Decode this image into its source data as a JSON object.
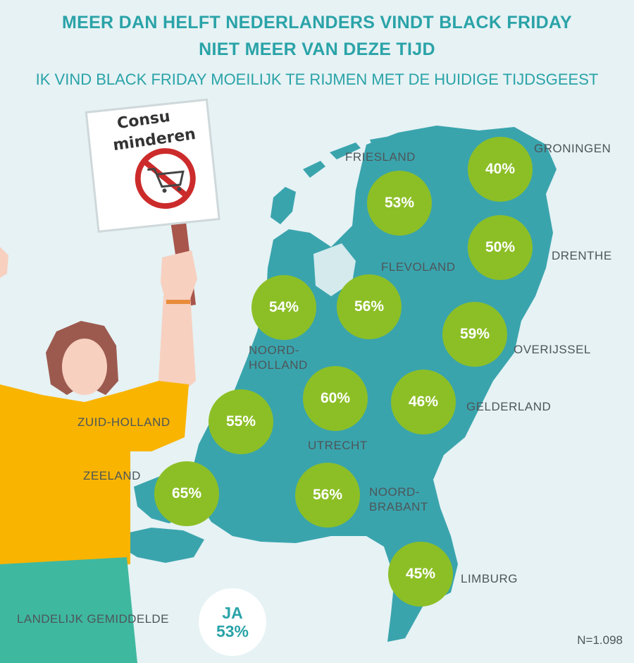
{
  "title_line1": "MEER DAN HELFT NEDERLANDERS VINDT BLACK FRIDAY",
  "title_line2": "NIET MEER VAN DEZE TIJD",
  "subtitle": "IK VIND BLACK FRIDAY MOEILIJK TE RIJMEN MET DE HUIDIGE TIJDSGEEST",
  "sign": {
    "line1": "Consu",
    "line2": "minderen",
    "icon": "no-shopping-cart-icon"
  },
  "regions": [
    {
      "name": "GRONINGEN",
      "value": "40%"
    },
    {
      "name": "FRIESLAND",
      "value": "53%"
    },
    {
      "name": "DRENTHE",
      "value": "50%"
    },
    {
      "name": "FLEVOLAND",
      "value": "56%"
    },
    {
      "name_lines": [
        "NOORD-",
        "HOLLAND"
      ],
      "value": "54%"
    },
    {
      "name": "OVERIJSSEL",
      "value": "59%"
    },
    {
      "name": "UTRECHT",
      "value": "60%"
    },
    {
      "name": "GELDERLAND",
      "value": "46%"
    },
    {
      "name": "ZUID-HOLLAND",
      "value": "55%"
    },
    {
      "name": "ZEELAND",
      "value": "65%"
    },
    {
      "name_lines": [
        "NOORD-",
        "BRABANT"
      ],
      "value": "56%"
    },
    {
      "name": "LIMBURG",
      "value": "45%"
    }
  ],
  "national": {
    "label": "LANDELIJK GEMIDDELDE",
    "answer": "JA",
    "value": "53%"
  },
  "sample_size": "N=1.098",
  "colors": {
    "map": "#3aa4ad",
    "badge": "#8cbf26",
    "title": "#2aa3a8",
    "background": "#e6f2f4",
    "shirt": "#f9b400",
    "pants": "#3fb8a0"
  }
}
